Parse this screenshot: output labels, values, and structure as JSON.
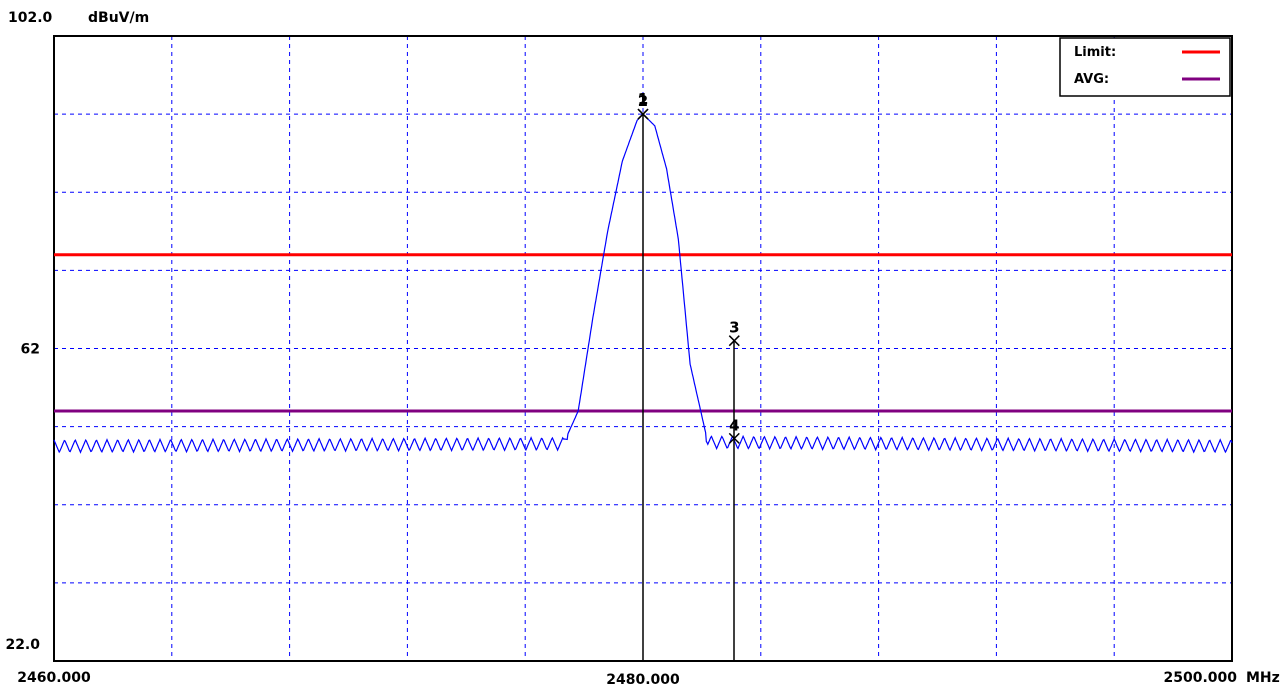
{
  "chart_data": {
    "type": "line",
    "title": "",
    "xlabel": "",
    "ylabel": "",
    "y_unit": "dBuV/m",
    "x_unit": "MHz",
    "xlim": [
      2460.0,
      2500.0
    ],
    "ylim": [
      22.0,
      102.0
    ],
    "y_ticks": [
      {
        "value": 102.0,
        "label": "102.0"
      },
      {
        "value": 62,
        "label": "62"
      },
      {
        "value": 22.0,
        "label": "22.0"
      }
    ],
    "x_ticks": [
      {
        "value": 2460.0,
        "label": "2460.000"
      },
      {
        "value": 2480.0,
        "label": "2480.000"
      },
      {
        "value": 2500.0,
        "label": "2500.000"
      }
    ],
    "grid": true,
    "legend_position": "top-right",
    "legend": [
      {
        "label": "Limit:",
        "color": "#ff0000"
      },
      {
        "label": "AVG:",
        "color": "#800080"
      }
    ],
    "limit_lines": [
      {
        "name": "Limit",
        "y": 74.0,
        "color": "#ff0000"
      },
      {
        "name": "AVG",
        "y": 54.0,
        "color": "#800080"
      }
    ],
    "series": [
      {
        "color": "#0000ff",
        "noise_floor": 49.5,
        "peak": {
          "x": 2480.0,
          "y": 92.0
        },
        "x": [
          2460.0,
          2477.3,
          2477.8,
          2478.3,
          2478.8,
          2479.3,
          2479.8,
          2480.0,
          2480.4,
          2480.8,
          2481.2,
          2481.6,
          2482.2,
          2500.0
        ],
        "y": [
          49.5,
          49.8,
          54.0,
          66.0,
          77.0,
          86.0,
          91.2,
          92.0,
          90.5,
          85.0,
          76.0,
          60.0,
          50.0,
          49.5
        ]
      }
    ],
    "markers": [
      {
        "label": "1",
        "x": 2480.0,
        "y": 92.0
      },
      {
        "label": "2",
        "x": 2480.0,
        "y": 92.0
      },
      {
        "label": "3",
        "x": 2483.1,
        "y": 63.0
      },
      {
        "label": "4",
        "x": 2483.1,
        "y": 50.5
      }
    ]
  }
}
